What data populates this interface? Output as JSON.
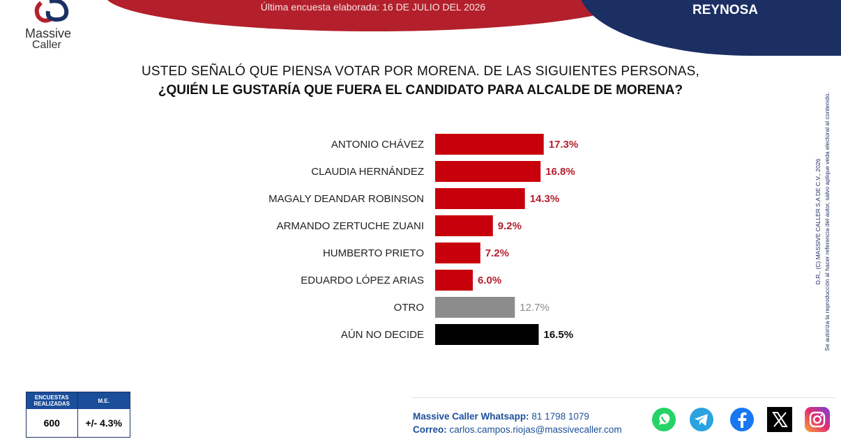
{
  "header": {
    "subtitle": "Última encuesta elaborada: 16 DE JULIO DEL 2026",
    "city": "REYNOSA"
  },
  "brand": {
    "line1": "Massive",
    "line2": "Caller",
    "accent": "#b3202c",
    "navy": "#1b2f63"
  },
  "question": {
    "line1": "USTED SEÑALÓ QUE PIENSA VOTAR POR MORENA. DE LAS SIGUIENTES PERSONAS,",
    "line2": "¿QUIÉN LE GUSTARÍA QUE FUERA EL CANDIDATO PARA ALCALDE DE MORENA?"
  },
  "chart_data": {
    "type": "bar",
    "orientation": "horizontal",
    "categories": [
      "ANTONIO CHÁVEZ",
      "CLAUDIA HERNÁNDEZ",
      "MAGALY DEANDAR ROBINSON",
      "ARMANDO ZERTUCHE ZUANI",
      "HUMBERTO PRIETO",
      "EDUARDO LÓPEZ ARIAS",
      "OTRO",
      "AÚN NO DECIDE"
    ],
    "values": [
      17.3,
      16.8,
      14.3,
      9.2,
      7.2,
      6.0,
      12.7,
      16.5
    ],
    "labels": [
      "17.3%",
      "16.8%",
      "14.3%",
      "9.2%",
      "7.2%",
      "6.0%",
      "12.7%",
      "16.5%"
    ],
    "colors": [
      "#c8000b",
      "#c8000b",
      "#c8000b",
      "#c8000b",
      "#c8000b",
      "#c8000b",
      "#8c8c8c",
      "#000000"
    ],
    "label_colors": [
      "#b3202c",
      "#b3202c",
      "#b3202c",
      "#b3202c",
      "#b3202c",
      "#b3202c",
      "#8c8c8c",
      "#111111"
    ]
  },
  "side_note": {
    "line1": "D.R., (C) MASSIVE CALLER S.A DE C.V., 2026",
    "line2": "Se autoriza la reproducción al hacer referencia del autor, salvo aplique veda electoral al contenido."
  },
  "stats": {
    "col1_header": "ENCUESTAS REALIZADAS",
    "col2_header": "M.E.",
    "col1_value": "600",
    "col2_value": "+/- 4.3%"
  },
  "contact": {
    "whatsapp_label": "Massive Caller Whatsapp:",
    "whatsapp_number": "81 1798 1079",
    "email_label": "Correo:",
    "email": "carlos.campos.riojas@massivecaller.com"
  },
  "social": [
    "whatsapp-icon",
    "telegram-icon",
    "facebook-icon",
    "x-icon",
    "instagram-icon"
  ]
}
